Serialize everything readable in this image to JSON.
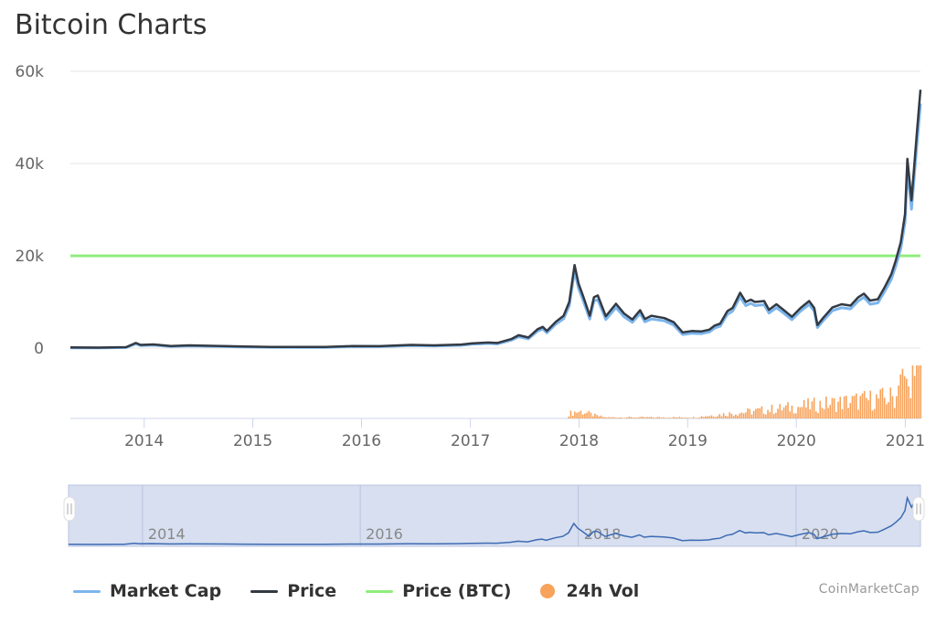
{
  "title": "Bitcoin Charts",
  "credit": "CoinMarketCap",
  "colors": {
    "market_cap": "#7cb5ec",
    "price": "#333a43",
    "price_btc": "#90ed7d",
    "volume": "#f7a35c",
    "navigator_fill": "#d7dff0",
    "navigator_line": "#3d6bb3"
  },
  "legend": [
    {
      "key": "market_cap",
      "label": "Market Cap",
      "marker": "line"
    },
    {
      "key": "price",
      "label": "Price",
      "marker": "line"
    },
    {
      "key": "price_btc",
      "label": "Price (BTC)",
      "marker": "line"
    },
    {
      "key": "volume",
      "label": "24h Vol",
      "marker": "dot"
    }
  ],
  "chart_data": {
    "type": "line",
    "title": "Bitcoin Charts",
    "xlim": [
      "2013-04-28",
      "2021-02-21"
    ],
    "ylim": [
      0,
      60000
    ],
    "y_ticks": [
      {
        "value": 0,
        "label": "0"
      },
      {
        "value": 20000,
        "label": "20k"
      },
      {
        "value": 40000,
        "label": "40k"
      },
      {
        "value": 60000,
        "label": "60k"
      }
    ],
    "x_ticks": [
      {
        "date": "2014-01-01",
        "label": "2014"
      },
      {
        "date": "2015-01-01",
        "label": "2015"
      },
      {
        "date": "2016-01-01",
        "label": "2016"
      },
      {
        "date": "2017-01-01",
        "label": "2017"
      },
      {
        "date": "2018-01-01",
        "label": "2018"
      },
      {
        "date": "2019-01-01",
        "label": "2019"
      },
      {
        "date": "2020-01-01",
        "label": "2020"
      },
      {
        "date": "2021-01-01",
        "label": "2021"
      }
    ],
    "grid": "horizontal",
    "legend_position": "bottom",
    "series": [
      {
        "name": "Price",
        "x": [
          "2013-04-28",
          "2013-08-01",
          "2013-11-01",
          "2013-12-04",
          "2013-12-20",
          "2014-02-01",
          "2014-04-01",
          "2014-06-01",
          "2014-09-01",
          "2014-12-01",
          "2015-03-01",
          "2015-06-01",
          "2015-09-01",
          "2015-12-01",
          "2016-03-01",
          "2016-06-15",
          "2016-09-01",
          "2016-12-01",
          "2017-01-05",
          "2017-03-01",
          "2017-04-01",
          "2017-05-20",
          "2017-06-12",
          "2017-07-15",
          "2017-08-15",
          "2017-09-01",
          "2017-09-15",
          "2017-10-15",
          "2017-11-10",
          "2017-11-29",
          "2017-12-17",
          "2017-12-30",
          "2018-01-16",
          "2018-02-06",
          "2018-02-20",
          "2018-03-05",
          "2018-04-01",
          "2018-05-05",
          "2018-06-01",
          "2018-06-29",
          "2018-07-25",
          "2018-08-10",
          "2018-09-01",
          "2018-10-15",
          "2018-11-15",
          "2018-12-15",
          "2019-01-15",
          "2019-02-15",
          "2019-03-15",
          "2019-04-02",
          "2019-04-20",
          "2019-05-14",
          "2019-06-01",
          "2019-06-26",
          "2019-07-15",
          "2019-08-01",
          "2019-08-15",
          "2019-09-15",
          "2019-10-01",
          "2019-10-26",
          "2019-11-15",
          "2019-12-17",
          "2020-01-15",
          "2020-02-13",
          "2020-03-01",
          "2020-03-12",
          "2020-04-01",
          "2020-05-01",
          "2020-06-01",
          "2020-07-01",
          "2020-07-27",
          "2020-08-15",
          "2020-09-05",
          "2020-10-01",
          "2020-10-22",
          "2020-11-15",
          "2020-11-30",
          "2020-12-17",
          "2020-12-31",
          "2021-01-08",
          "2021-01-22",
          "2021-02-08",
          "2021-02-21"
        ],
        "values": [
          130,
          100,
          200,
          1100,
          700,
          800,
          450,
          600,
          480,
          350,
          260,
          240,
          240,
          430,
          410,
          700,
          600,
          770,
          1000,
          1200,
          1100,
          2000,
          2800,
          2300,
          4100,
          4600,
          3700,
          5700,
          7000,
          10000,
          18000,
          14000,
          11000,
          7000,
          11000,
          11400,
          6900,
          9600,
          7500,
          6200,
          8200,
          6300,
          7000,
          6500,
          5600,
          3400,
          3700,
          3600,
          4000,
          4900,
          5300,
          8000,
          8700,
          12000,
          10000,
          10500,
          10000,
          10200,
          8300,
          9500,
          8500,
          6800,
          8700,
          10200,
          8700,
          5000,
          6600,
          8800,
          9500,
          9200,
          11000,
          11800,
          10300,
          10600,
          13000,
          16000,
          19000,
          23000,
          29000,
          41000,
          32000,
          46000,
          56000
        ]
      },
      {
        "name": "Market Cap",
        "x": [
          "2013-04-28",
          "2013-08-01",
          "2013-11-01",
          "2013-12-04",
          "2013-12-20",
          "2014-02-01",
          "2014-04-01",
          "2014-06-01",
          "2014-09-01",
          "2014-12-01",
          "2015-03-01",
          "2015-06-01",
          "2015-09-01",
          "2015-12-01",
          "2016-03-01",
          "2016-06-15",
          "2016-09-01",
          "2016-12-01",
          "2017-01-05",
          "2017-03-01",
          "2017-04-01",
          "2017-05-20",
          "2017-06-12",
          "2017-07-15",
          "2017-08-15",
          "2017-09-01",
          "2017-09-15",
          "2017-10-15",
          "2017-11-10",
          "2017-11-29",
          "2017-12-17",
          "2017-12-30",
          "2018-01-16",
          "2018-02-06",
          "2018-02-20",
          "2018-03-05",
          "2018-04-01",
          "2018-05-05",
          "2018-06-01",
          "2018-06-29",
          "2018-07-25",
          "2018-08-10",
          "2018-09-01",
          "2018-10-15",
          "2018-11-15",
          "2018-12-15",
          "2019-01-15",
          "2019-02-15",
          "2019-03-15",
          "2019-04-02",
          "2019-04-20",
          "2019-05-14",
          "2019-06-01",
          "2019-06-26",
          "2019-07-15",
          "2019-08-01",
          "2019-08-15",
          "2019-09-15",
          "2019-10-01",
          "2019-10-26",
          "2019-11-15",
          "2019-12-17",
          "2020-01-15",
          "2020-02-13",
          "2020-03-01",
          "2020-03-12",
          "2020-04-01",
          "2020-05-01",
          "2020-06-01",
          "2020-07-01",
          "2020-07-27",
          "2020-08-15",
          "2020-09-05",
          "2020-10-01",
          "2020-10-22",
          "2020-11-15",
          "2020-11-30",
          "2020-12-17",
          "2020-12-31",
          "2021-01-08",
          "2021-01-22",
          "2021-02-08",
          "2021-02-21"
        ],
        "values": [
          60,
          40,
          120,
          900,
          550,
          650,
          350,
          480,
          380,
          260,
          180,
          160,
          160,
          330,
          310,
          560,
          470,
          620,
          840,
          1000,
          920,
          1750,
          2450,
          2000,
          3700,
          4150,
          3300,
          5200,
          6350,
          9200,
          16800,
          13000,
          10100,
          6300,
          10200,
          10500,
          6200,
          8800,
          6800,
          5600,
          7500,
          5700,
          6300,
          5900,
          5000,
          2950,
          3200,
          3100,
          3500,
          4350,
          4750,
          7300,
          8000,
          11100,
          9200,
          9700,
          9200,
          9400,
          7600,
          8750,
          7800,
          6150,
          8000,
          9450,
          8000,
          4450,
          6000,
          8100,
          8750,
          8500,
          10200,
          11000,
          9500,
          9800,
          12100,
          14900,
          17800,
          21600,
          27300,
          38700,
          30100,
          43400,
          53000
        ]
      },
      {
        "name": "Price (BTC)",
        "x": [
          "2013-04-28",
          "2021-02-21"
        ],
        "values": [
          20000,
          20000
        ]
      },
      {
        "name": "24h Vol",
        "x": [
          "2017-11-25",
          "2021-02-21"
        ],
        "values": [
          0,
          0
        ]
      }
    ]
  },
  "navigator": {
    "tick_labels": [
      "2014",
      "2016",
      "2018",
      "2020"
    ]
  }
}
